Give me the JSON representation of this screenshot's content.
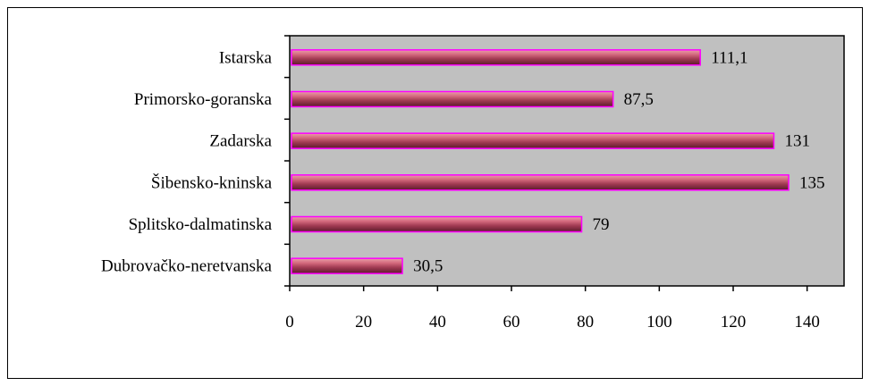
{
  "chart_data": {
    "type": "bar",
    "orientation": "horizontal",
    "categories": [
      "Istarska",
      "Primorsko-goranska",
      "Zadarska",
      "Šibensko-kninska",
      "Splitsko-dalmatinska",
      "Dubrovačko-neretvanska"
    ],
    "values": [
      111.1,
      87.5,
      131,
      135,
      79,
      30.5
    ],
    "value_labels": [
      "111,1",
      "87,5",
      "131",
      "135",
      "79",
      "30,5"
    ],
    "xticks": [
      "0",
      "20",
      "40",
      "60",
      "80",
      "100",
      "120",
      "140"
    ],
    "xlim": [
      0,
      150
    ],
    "title": "",
    "xlabel": "",
    "ylabel": "",
    "grid": false,
    "legend": "none",
    "colors": {
      "plot_bg": "#c0c0c0",
      "bar_fill": "#c0506a",
      "bar_edge": "#ff00ff"
    }
  }
}
